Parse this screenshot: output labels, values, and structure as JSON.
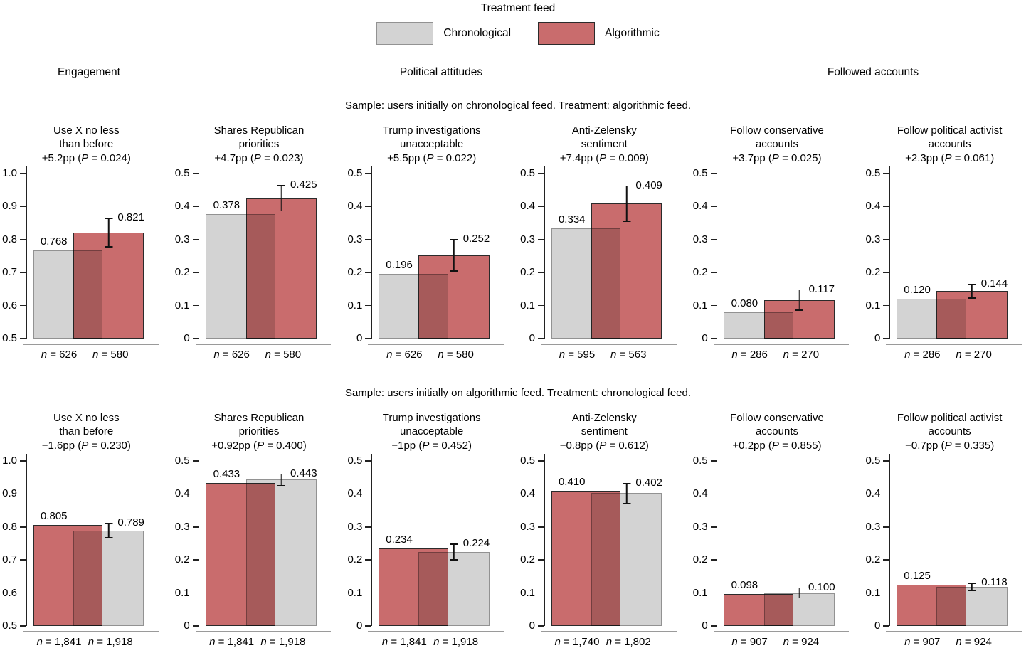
{
  "legend": {
    "title": "Treatment feed",
    "items": [
      {
        "label": "Chronological",
        "feed": "chronological"
      },
      {
        "label": "Algorithmic",
        "feed": "algorithmic"
      }
    ]
  },
  "group_headers": [
    {
      "label": "Engagement"
    },
    {
      "label": "Political attitudes"
    },
    {
      "label": "Followed accounts"
    }
  ],
  "colors": {
    "chronological": {
      "fill": "#d3d3d3",
      "border": "#929292"
    },
    "algorithmic": {
      "fill": "#c96c6d",
      "border": "#2b2b2b"
    },
    "axis": "#222222",
    "baseline": "#9a9a9a",
    "error": "#111111"
  },
  "chart_data": {
    "type": "bar",
    "rows": [
      {
        "sample_caption": "Sample: users initially on chronological feed. Treatment: algorithmic feed.",
        "panels": [
          {
            "title_lines": [
              "Use X no less",
              "than before"
            ],
            "effect": "+5.2pp",
            "p": "0.024",
            "ylim": [
              0.5,
              1.0
            ],
            "yticks": [
              "1.0",
              "0.9",
              "0.8",
              "0.7",
              "0.6",
              "0.5"
            ],
            "bars": [
              {
                "feed": "chronological",
                "value": "0.768",
                "n": "626"
              },
              {
                "feed": "algorithmic",
                "value": "0.821",
                "err": 0.045,
                "n": "580"
              }
            ]
          },
          {
            "title_lines": [
              "Shares Republican",
              "priorities"
            ],
            "effect": "+4.7pp",
            "p": "0.023",
            "ylim": [
              0,
              0.5
            ],
            "yticks": [
              "0.5",
              "0.4",
              "0.3",
              "0.2",
              "0.1",
              "0"
            ],
            "bars": [
              {
                "feed": "chronological",
                "value": "0.378",
                "n": "626"
              },
              {
                "feed": "algorithmic",
                "value": "0.425",
                "err": 0.04,
                "n": "580"
              }
            ]
          },
          {
            "title_lines": [
              "Trump investigations",
              "unacceptable"
            ],
            "effect": "+5.5pp",
            "p": "0.022",
            "ylim": [
              0,
              0.5
            ],
            "yticks": [
              "0.5",
              "0.4",
              "0.3",
              "0.2",
              "0.1",
              "0"
            ],
            "bars": [
              {
                "feed": "chronological",
                "value": "0.196",
                "n": "626"
              },
              {
                "feed": "algorithmic",
                "value": "0.252",
                "err": 0.049,
                "n": "580"
              }
            ]
          },
          {
            "title_lines": [
              "Anti-Zelensky",
              "sentiment"
            ],
            "effect": "+7.4pp",
            "p": "0.009",
            "ylim": [
              0,
              0.5
            ],
            "yticks": [
              "0.5",
              "0.4",
              "0.3",
              "0.2",
              "0.1",
              "0"
            ],
            "bars": [
              {
                "feed": "chronological",
                "value": "0.334",
                "n": "595"
              },
              {
                "feed": "algorithmic",
                "value": "0.409",
                "err": 0.055,
                "n": "563"
              }
            ]
          },
          {
            "title_lines": [
              "Follow conservative",
              "accounts"
            ],
            "effect": "+3.7pp",
            "p": "0.025",
            "ylim": [
              0,
              0.5
            ],
            "yticks": [
              "0.5",
              "0.4",
              "0.3",
              "0.2",
              "0.1",
              "0"
            ],
            "bars": [
              {
                "feed": "chronological",
                "value": "0.080",
                "n": "286"
              },
              {
                "feed": "algorithmic",
                "value": "0.117",
                "err": 0.032,
                "n": "270"
              }
            ]
          },
          {
            "title_lines": [
              "Follow political activist",
              "accounts"
            ],
            "effect": "+2.3pp",
            "p": "0.061",
            "ylim": [
              0,
              0.5
            ],
            "yticks": [
              "0.5",
              "0.4",
              "0.3",
              "0.2",
              "0.1",
              "0"
            ],
            "bars": [
              {
                "feed": "chronological",
                "value": "0.120",
                "n": "286"
              },
              {
                "feed": "algorithmic",
                "value": "0.144",
                "err": 0.023,
                "n": "270"
              }
            ]
          }
        ]
      },
      {
        "sample_caption": "Sample: users initially on algorithmic feed. Treatment: chronological feed.",
        "panels": [
          {
            "title_lines": [
              "Use X no less",
              "than before"
            ],
            "effect": "−1.6pp",
            "p": "0.230",
            "ylim": [
              0.5,
              1.0
            ],
            "yticks": [
              "1.0",
              "0.9",
              "0.8",
              "0.7",
              "0.6",
              "0.5"
            ],
            "bars": [
              {
                "feed": "algorithmic",
                "value": "0.805",
                "n": "1,841"
              },
              {
                "feed": "chronological",
                "value": "0.789",
                "err": 0.023,
                "n": "1,918"
              }
            ]
          },
          {
            "title_lines": [
              "Shares Republican",
              "priorities"
            ],
            "effect": "+0.92pp",
            "p": "0.400",
            "ylim": [
              0,
              0.5
            ],
            "yticks": [
              "0.5",
              "0.4",
              "0.3",
              "0.2",
              "0.1",
              "0"
            ],
            "bars": [
              {
                "feed": "algorithmic",
                "value": "0.433",
                "n": "1,841"
              },
              {
                "feed": "chronological",
                "value": "0.443",
                "err": 0.019,
                "n": "1,918"
              }
            ]
          },
          {
            "title_lines": [
              "Trump investigations",
              "unacceptable"
            ],
            "effect": "−1pp",
            "p": "0.452",
            "ylim": [
              0,
              0.5
            ],
            "yticks": [
              "0.5",
              "0.4",
              "0.3",
              "0.2",
              "0.1",
              "0"
            ],
            "bars": [
              {
                "feed": "algorithmic",
                "value": "0.234",
                "n": "1,841"
              },
              {
                "feed": "chronological",
                "value": "0.224",
                "err": 0.025,
                "n": "1,918"
              }
            ]
          },
          {
            "title_lines": [
              "Anti-Zelensky",
              "sentiment"
            ],
            "effect": "−0.8pp",
            "p": "0.612",
            "ylim": [
              0,
              0.5
            ],
            "yticks": [
              "0.5",
              "0.4",
              "0.3",
              "0.2",
              "0.1",
              "0"
            ],
            "bars": [
              {
                "feed": "algorithmic",
                "value": "0.410",
                "n": "1,740"
              },
              {
                "feed": "chronological",
                "value": "0.402",
                "err": 0.032,
                "n": "1,802"
              }
            ]
          },
          {
            "title_lines": [
              "Follow conservative",
              "accounts"
            ],
            "effect": "+0.2pp",
            "p": "0.855",
            "ylim": [
              0,
              0.5
            ],
            "yticks": [
              "0.5",
              "0.4",
              "0.3",
              "0.2",
              "0.1",
              "0"
            ],
            "bars": [
              {
                "feed": "algorithmic",
                "value": "0.098",
                "n": "907"
              },
              {
                "feed": "chronological",
                "value": "0.100",
                "err": 0.017,
                "n": "924"
              }
            ]
          },
          {
            "title_lines": [
              "Follow political activist",
              "accounts"
            ],
            "effect": "−0.7pp",
            "p": "0.335",
            "ylim": [
              0,
              0.5
            ],
            "yticks": [
              "0.5",
              "0.4",
              "0.3",
              "0.2",
              "0.1",
              "0"
            ],
            "bars": [
              {
                "feed": "algorithmic",
                "value": "0.125",
                "n": "907"
              },
              {
                "feed": "chronological",
                "value": "0.118",
                "err": 0.013,
                "n": "924"
              }
            ]
          }
        ]
      }
    ]
  }
}
